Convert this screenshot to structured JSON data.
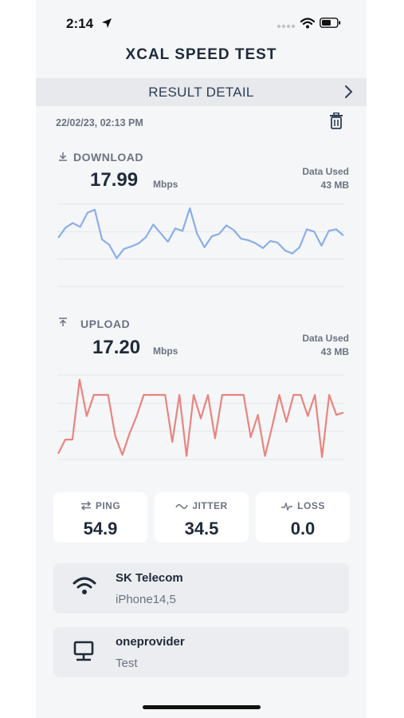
{
  "status_bar": {
    "time": "2:14"
  },
  "app": {
    "title": "XCAL SPEED TEST"
  },
  "header": {
    "title": "RESULT DETAIL"
  },
  "result": {
    "datetime": "22/02/23, 02:13 PM"
  },
  "download": {
    "label": "DOWNLOAD",
    "value": "17.99",
    "unit": "Mbps",
    "data_used_label": "Data Used",
    "data_used_value": "43 MB",
    "color": "#8aaeea"
  },
  "upload": {
    "label": "UPLOAD",
    "value": "17.20",
    "unit": "Mbps",
    "data_used_label": "Data Used",
    "data_used_value": "43 MB",
    "color": "#e8857f"
  },
  "stats": {
    "ping": {
      "label": "PING",
      "value": "54.9"
    },
    "jitter": {
      "label": "JITTER",
      "value": "34.5"
    },
    "loss": {
      "label": "LOSS",
      "value": "0.0"
    }
  },
  "network": {
    "name": "SK Telecom",
    "device": "iPhone14,5"
  },
  "server": {
    "name": "oneprovider",
    "location": "Test"
  },
  "chart_data": [
    {
      "type": "line",
      "series": [
        {
          "values": [
            6.2,
            7.5,
            8.1,
            7.6,
            9.4,
            9.8,
            6.0,
            5.3,
            3.6,
            4.8,
            5.1,
            5.5,
            6.3,
            7.9,
            6.8,
            5.7,
            7.4,
            7.1,
            10.0,
            6.7,
            5.0,
            6.4,
            6.7,
            7.8,
            7.2,
            6.1,
            5.9,
            5.5,
            4.9,
            5.8,
            5.6,
            4.6,
            4.2,
            5.0,
            7.3,
            7.0,
            5.2,
            7.1,
            7.3,
            6.5
          ]
        }
      ]
    },
    {
      "type": "line",
      "series": [
        {
          "values": [
            0.5,
            1.7,
            1.7,
            6.8,
            3.7,
            5.5,
            5.5,
            5.5,
            2.0,
            0.4,
            2.2,
            3.7,
            5.5,
            5.5,
            5.5,
            5.5,
            1.5,
            5.5,
            0.3,
            5.5,
            3.5,
            5.5,
            1.8,
            5.5,
            5.5,
            5.5,
            5.5,
            1.9,
            3.8,
            0.3,
            2.8,
            5.5,
            3.2,
            5.5,
            5.5,
            3.7,
            5.5,
            0.2,
            5.5,
            3.8,
            4.0
          ]
        }
      ]
    }
  ]
}
